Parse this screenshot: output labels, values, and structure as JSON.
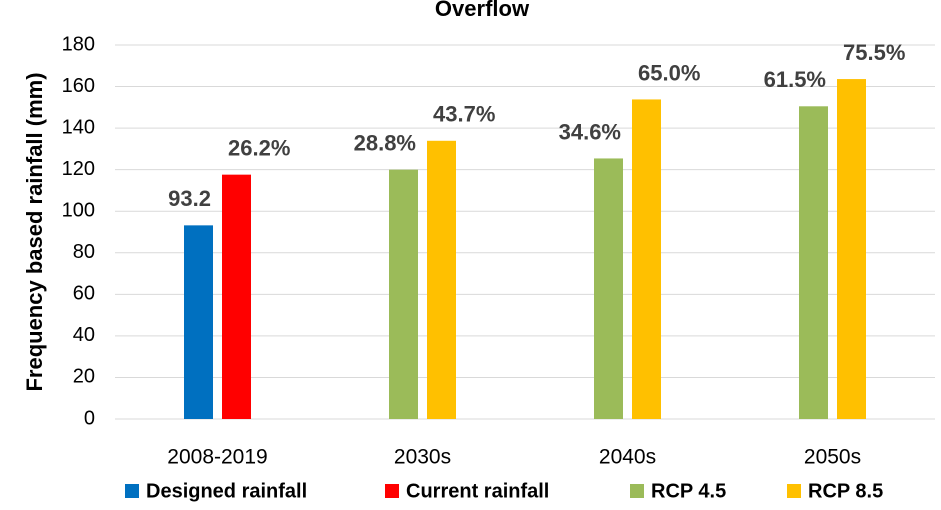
{
  "chart_data": {
    "type": "bar",
    "title": "Overflow",
    "y_label": "Frequency based rainfall (mm)",
    "categories": [
      "2008-2019",
      "2030s",
      "2040s",
      "2050s"
    ],
    "series": [
      {
        "name": "Designed rainfall",
        "color": "#0070c0",
        "values": [
          93.2,
          null,
          null,
          null
        ]
      },
      {
        "name": "Current rainfall",
        "color": "#ff0000",
        "values": [
          117.6,
          null,
          null,
          null
        ],
        "labels": [
          "26.2%",
          null,
          null,
          null
        ]
      },
      {
        "name": "RCP 4.5",
        "color": "#9bbb59",
        "values": [
          null,
          120.0,
          125.4,
          150.5
        ],
        "labels": [
          null,
          "28.8%",
          "34.6%",
          "61.5%"
        ]
      },
      {
        "name": "RCP 8.5",
        "color": "#ffc000",
        "values": [
          null,
          133.9,
          153.8,
          163.6
        ],
        "labels": [
          null,
          "43.7%",
          "65.0%",
          "75.5%"
        ]
      }
    ],
    "ylim": [
      0,
      180
    ],
    "yticks": [
      0,
      20,
      40,
      60,
      80,
      100,
      120,
      140,
      160,
      180
    ],
    "grid": true,
    "legend": "bottom"
  }
}
